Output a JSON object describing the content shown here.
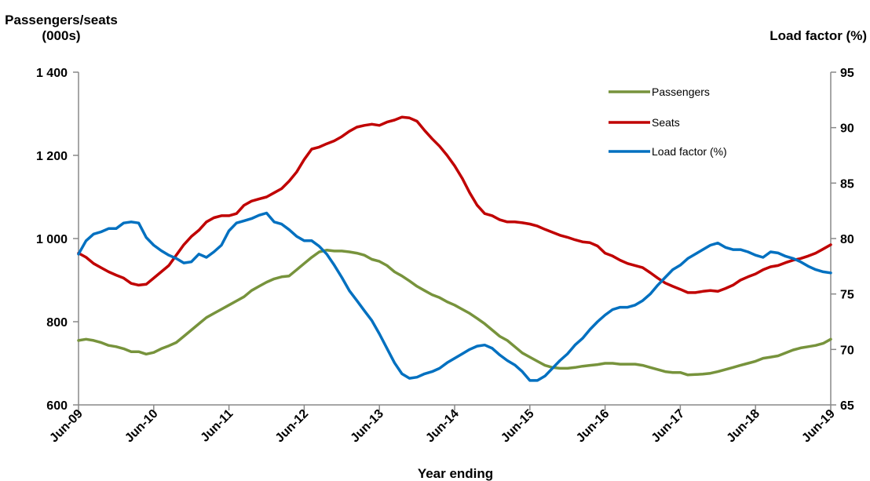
{
  "chart_data": {
    "type": "line",
    "title": "",
    "xlabel": "Year ending",
    "ylabel_left": "Passengers/seats (000s)",
    "ylabel_left_lines": [
      "Passengers/seats",
      "(000s)"
    ],
    "ylabel_right": "Load factor (%)",
    "x_ticks": [
      "Jun-09",
      "Jun-10",
      "Jun-11",
      "Jun-12",
      "Jun-13",
      "Jun-14",
      "Jun-15",
      "Jun-16",
      "Jun-17",
      "Jun-18",
      "Jun-19"
    ],
    "y_left_ticks": [
      "600",
      "800",
      "1 000",
      "1 200",
      "1 400"
    ],
    "y_left_range": [
      600,
      1400
    ],
    "y_right_ticks": [
      "65",
      "70",
      "75",
      "80",
      "85",
      "90",
      "95"
    ],
    "y_right_range": [
      65,
      95
    ],
    "x_range": [
      0,
      10
    ],
    "grid": false,
    "legend_position": "top-right",
    "series": [
      {
        "name": "Passengers",
        "axis": "left",
        "color": "#77933c",
        "points": [
          [
            0,
            755
          ],
          [
            0.1,
            758
          ],
          [
            0.2,
            755
          ],
          [
            0.3,
            750
          ],
          [
            0.4,
            743
          ],
          [
            0.5,
            740
          ],
          [
            0.6,
            735
          ],
          [
            0.7,
            728
          ],
          [
            0.8,
            728
          ],
          [
            0.9,
            722
          ],
          [
            1,
            726
          ],
          [
            1.1,
            735
          ],
          [
            1.2,
            742
          ],
          [
            1.3,
            750
          ],
          [
            1.4,
            765
          ],
          [
            1.5,
            780
          ],
          [
            1.6,
            795
          ],
          [
            1.7,
            810
          ],
          [
            1.8,
            820
          ],
          [
            1.9,
            830
          ],
          [
            2,
            840
          ],
          [
            2.1,
            850
          ],
          [
            2.2,
            860
          ],
          [
            2.3,
            875
          ],
          [
            2.4,
            885
          ],
          [
            2.5,
            895
          ],
          [
            2.6,
            903
          ],
          [
            2.7,
            908
          ],
          [
            2.8,
            910
          ],
          [
            2.9,
            925
          ],
          [
            3,
            940
          ],
          [
            3.1,
            955
          ],
          [
            3.2,
            968
          ],
          [
            3.3,
            972
          ],
          [
            3.4,
            970
          ],
          [
            3.5,
            970
          ],
          [
            3.6,
            968
          ],
          [
            3.7,
            965
          ],
          [
            3.8,
            960
          ],
          [
            3.9,
            950
          ],
          [
            4,
            945
          ],
          [
            4.1,
            935
          ],
          [
            4.2,
            920
          ],
          [
            4.3,
            910
          ],
          [
            4.4,
            898
          ],
          [
            4.5,
            885
          ],
          [
            4.6,
            875
          ],
          [
            4.7,
            865
          ],
          [
            4.8,
            858
          ],
          [
            4.9,
            848
          ],
          [
            5,
            840
          ],
          [
            5.1,
            830
          ],
          [
            5.2,
            820
          ],
          [
            5.3,
            808
          ],
          [
            5.4,
            795
          ],
          [
            5.5,
            780
          ],
          [
            5.6,
            765
          ],
          [
            5.7,
            755
          ],
          [
            5.8,
            740
          ],
          [
            5.9,
            725
          ],
          [
            6,
            715
          ],
          [
            6.1,
            705
          ],
          [
            6.2,
            695
          ],
          [
            6.3,
            690
          ],
          [
            6.4,
            688
          ],
          [
            6.5,
            688
          ],
          [
            6.6,
            690
          ],
          [
            6.7,
            693
          ],
          [
            6.8,
            695
          ],
          [
            6.9,
            697
          ],
          [
            7,
            700
          ],
          [
            7.1,
            700
          ],
          [
            7.2,
            698
          ],
          [
            7.3,
            698
          ],
          [
            7.4,
            698
          ],
          [
            7.5,
            695
          ],
          [
            7.6,
            690
          ],
          [
            7.7,
            685
          ],
          [
            7.8,
            680
          ],
          [
            7.9,
            678
          ],
          [
            8,
            678
          ],
          [
            8.1,
            672
          ],
          [
            8.2,
            673
          ],
          [
            8.3,
            674
          ],
          [
            8.4,
            676
          ],
          [
            8.5,
            680
          ],
          [
            8.6,
            685
          ],
          [
            8.7,
            690
          ],
          [
            8.8,
            695
          ],
          [
            8.9,
            700
          ],
          [
            9,
            705
          ],
          [
            9.1,
            712
          ],
          [
            9.2,
            715
          ],
          [
            9.3,
            718
          ],
          [
            9.4,
            725
          ],
          [
            9.5,
            732
          ],
          [
            9.6,
            737
          ],
          [
            9.7,
            740
          ],
          [
            9.8,
            743
          ],
          [
            9.9,
            748
          ],
          [
            10,
            758
          ]
        ]
      },
      {
        "name": "Seats",
        "axis": "left",
        "color": "#c00000",
        "points": [
          [
            0,
            965
          ],
          [
            0.1,
            955
          ],
          [
            0.2,
            940
          ],
          [
            0.3,
            930
          ],
          [
            0.4,
            920
          ],
          [
            0.5,
            912
          ],
          [
            0.6,
            905
          ],
          [
            0.7,
            892
          ],
          [
            0.8,
            888
          ],
          [
            0.9,
            890
          ],
          [
            1,
            905
          ],
          [
            1.1,
            920
          ],
          [
            1.2,
            935
          ],
          [
            1.3,
            960
          ],
          [
            1.4,
            985
          ],
          [
            1.5,
            1005
          ],
          [
            1.6,
            1020
          ],
          [
            1.7,
            1040
          ],
          [
            1.8,
            1050
          ],
          [
            1.9,
            1055
          ],
          [
            2,
            1055
          ],
          [
            2.1,
            1060
          ],
          [
            2.2,
            1080
          ],
          [
            2.3,
            1090
          ],
          [
            2.4,
            1095
          ],
          [
            2.5,
            1100
          ],
          [
            2.6,
            1110
          ],
          [
            2.7,
            1120
          ],
          [
            2.8,
            1138
          ],
          [
            2.9,
            1160
          ],
          [
            3,
            1190
          ],
          [
            3.1,
            1215
          ],
          [
            3.2,
            1220
          ],
          [
            3.3,
            1228
          ],
          [
            3.4,
            1235
          ],
          [
            3.5,
            1245
          ],
          [
            3.6,
            1258
          ],
          [
            3.7,
            1268
          ],
          [
            3.8,
            1272
          ],
          [
            3.9,
            1275
          ],
          [
            4,
            1272
          ],
          [
            4.1,
            1280
          ],
          [
            4.2,
            1285
          ],
          [
            4.3,
            1292
          ],
          [
            4.4,
            1290
          ],
          [
            4.5,
            1282
          ],
          [
            4.6,
            1260
          ],
          [
            4.7,
            1240
          ],
          [
            4.8,
            1222
          ],
          [
            4.9,
            1200
          ],
          [
            5,
            1175
          ],
          [
            5.1,
            1145
          ],
          [
            5.2,
            1110
          ],
          [
            5.3,
            1080
          ],
          [
            5.4,
            1060
          ],
          [
            5.5,
            1055
          ],
          [
            5.6,
            1045
          ],
          [
            5.7,
            1040
          ],
          [
            5.8,
            1040
          ],
          [
            5.9,
            1038
          ],
          [
            6,
            1035
          ],
          [
            6.1,
            1030
          ],
          [
            6.2,
            1022
          ],
          [
            6.3,
            1015
          ],
          [
            6.4,
            1008
          ],
          [
            6.5,
            1003
          ],
          [
            6.6,
            997
          ],
          [
            6.7,
            992
          ],
          [
            6.8,
            990
          ],
          [
            6.9,
            982
          ],
          [
            7,
            965
          ],
          [
            7.1,
            958
          ],
          [
            7.2,
            948
          ],
          [
            7.3,
            940
          ],
          [
            7.4,
            935
          ],
          [
            7.5,
            930
          ],
          [
            7.6,
            918
          ],
          [
            7.7,
            905
          ],
          [
            7.8,
            893
          ],
          [
            7.9,
            885
          ],
          [
            8,
            878
          ],
          [
            8.1,
            870
          ],
          [
            8.2,
            870
          ],
          [
            8.3,
            873
          ],
          [
            8.4,
            875
          ],
          [
            8.5,
            873
          ],
          [
            8.6,
            880
          ],
          [
            8.7,
            888
          ],
          [
            8.8,
            900
          ],
          [
            8.9,
            908
          ],
          [
            9,
            915
          ],
          [
            9.1,
            925
          ],
          [
            9.2,
            932
          ],
          [
            9.3,
            935
          ],
          [
            9.4,
            942
          ],
          [
            9.5,
            948
          ],
          [
            9.6,
            952
          ],
          [
            9.7,
            958
          ],
          [
            9.8,
            965
          ],
          [
            9.9,
            975
          ],
          [
            10,
            985
          ]
        ]
      },
      {
        "name": "Load factor (%)",
        "axis": "right",
        "color": "#0070c0",
        "points": [
          [
            0,
            78.6
          ],
          [
            0.1,
            79.8
          ],
          [
            0.2,
            80.4
          ],
          [
            0.3,
            80.6
          ],
          [
            0.4,
            80.9
          ],
          [
            0.5,
            80.9
          ],
          [
            0.6,
            81.4
          ],
          [
            0.7,
            81.5
          ],
          [
            0.8,
            81.4
          ],
          [
            0.9,
            80.1
          ],
          [
            1,
            79.4
          ],
          [
            1.1,
            78.9
          ],
          [
            1.2,
            78.5
          ],
          [
            1.3,
            78.2
          ],
          [
            1.4,
            77.8
          ],
          [
            1.5,
            77.9
          ],
          [
            1.6,
            78.6
          ],
          [
            1.7,
            78.3
          ],
          [
            1.8,
            78.8
          ],
          [
            1.9,
            79.4
          ],
          [
            2,
            80.7
          ],
          [
            2.1,
            81.4
          ],
          [
            2.2,
            81.6
          ],
          [
            2.3,
            81.8
          ],
          [
            2.4,
            82.1
          ],
          [
            2.5,
            82.3
          ],
          [
            2.6,
            81.5
          ],
          [
            2.7,
            81.3
          ],
          [
            2.8,
            80.8
          ],
          [
            2.9,
            80.2
          ],
          [
            3,
            79.8
          ],
          [
            3.1,
            79.8
          ],
          [
            3.2,
            79.3
          ],
          [
            3.3,
            78.6
          ],
          [
            3.4,
            77.6
          ],
          [
            3.5,
            76.5
          ],
          [
            3.6,
            75.3
          ],
          [
            3.7,
            74.4
          ],
          [
            3.8,
            73.5
          ],
          [
            3.9,
            72.6
          ],
          [
            4,
            71.4
          ],
          [
            4.1,
            70.1
          ],
          [
            4.2,
            68.8
          ],
          [
            4.3,
            67.8
          ],
          [
            4.4,
            67.4
          ],
          [
            4.5,
            67.5
          ],
          [
            4.6,
            67.8
          ],
          [
            4.7,
            68.0
          ],
          [
            4.8,
            68.3
          ],
          [
            4.9,
            68.8
          ],
          [
            5,
            69.2
          ],
          [
            5.1,
            69.6
          ],
          [
            5.2,
            70.0
          ],
          [
            5.3,
            70.3
          ],
          [
            5.4,
            70.4
          ],
          [
            5.5,
            70.1
          ],
          [
            5.6,
            69.5
          ],
          [
            5.7,
            69.0
          ],
          [
            5.8,
            68.6
          ],
          [
            5.9,
            68.0
          ],
          [
            6,
            67.2
          ],
          [
            6.1,
            67.2
          ],
          [
            6.2,
            67.6
          ],
          [
            6.3,
            68.3
          ],
          [
            6.4,
            69.0
          ],
          [
            6.5,
            69.6
          ],
          [
            6.6,
            70.4
          ],
          [
            6.7,
            71.0
          ],
          [
            6.8,
            71.8
          ],
          [
            6.9,
            72.5
          ],
          [
            7,
            73.1
          ],
          [
            7.1,
            73.6
          ],
          [
            7.2,
            73.8
          ],
          [
            7.3,
            73.8
          ],
          [
            7.4,
            74.0
          ],
          [
            7.5,
            74.4
          ],
          [
            7.6,
            75.0
          ],
          [
            7.7,
            75.8
          ],
          [
            7.8,
            76.5
          ],
          [
            7.9,
            77.2
          ],
          [
            8,
            77.6
          ],
          [
            8.1,
            78.2
          ],
          [
            8.2,
            78.6
          ],
          [
            8.3,
            79.0
          ],
          [
            8.4,
            79.4
          ],
          [
            8.5,
            79.6
          ],
          [
            8.6,
            79.2
          ],
          [
            8.7,
            79.0
          ],
          [
            8.8,
            79.0
          ],
          [
            8.9,
            78.8
          ],
          [
            9,
            78.5
          ],
          [
            9.1,
            78.3
          ],
          [
            9.2,
            78.8
          ],
          [
            9.3,
            78.7
          ],
          [
            9.4,
            78.4
          ],
          [
            9.5,
            78.2
          ],
          [
            9.6,
            77.9
          ],
          [
            9.7,
            77.5
          ],
          [
            9.8,
            77.2
          ],
          [
            9.9,
            77.0
          ],
          [
            10,
            76.9
          ]
        ]
      }
    ]
  }
}
